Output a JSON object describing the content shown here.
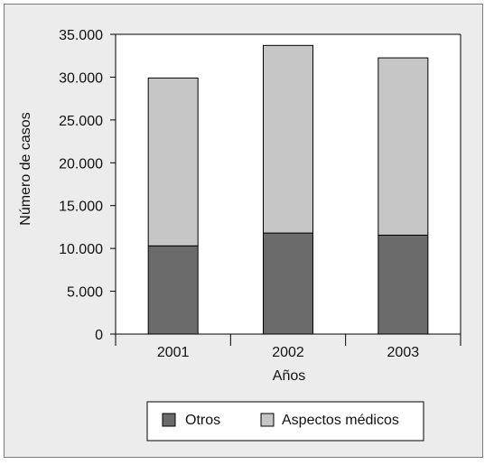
{
  "chart_data": {
    "type": "bar",
    "stacked": true,
    "categories": [
      "2001",
      "2002",
      "2003"
    ],
    "series": [
      {
        "name": "Otros",
        "values": [
          10300,
          11800,
          11550
        ],
        "color": "#6b6b6b"
      },
      {
        "name": "Aspectos médicos",
        "values": [
          19600,
          21900,
          20700
        ],
        "color": "#c6c6c6"
      }
    ],
    "xlabel": "Años",
    "ylabel": "Número de casos",
    "ylim": [
      0,
      35000
    ],
    "y_ticks": [
      0,
      5000,
      10000,
      15000,
      20000,
      25000,
      30000,
      35000
    ],
    "y_tick_labels": [
      "0",
      "5.000",
      "10.000",
      "15.000",
      "20.000",
      "25.000",
      "30.000",
      "35.000"
    ],
    "grid": false,
    "legend_position": "bottom",
    "colors": {
      "background": "#ececec",
      "plot_background": "#ffffff",
      "axis": "#000000"
    }
  }
}
